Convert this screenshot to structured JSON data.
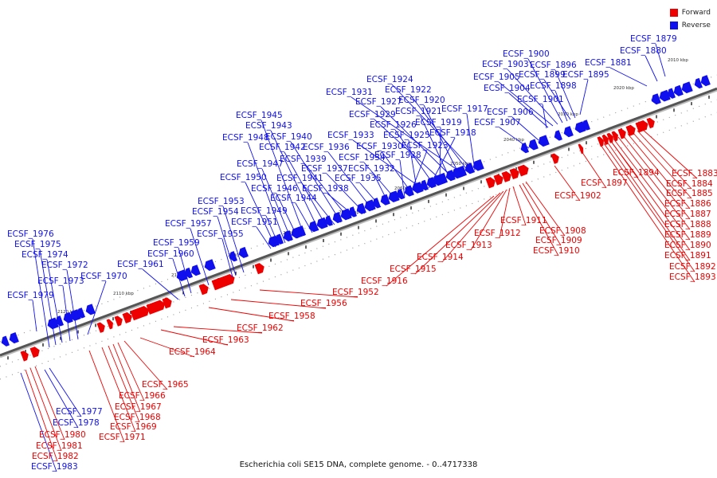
{
  "colors": {
    "forward": "#ee0000",
    "reverse": "#1010ee",
    "axis": "#555555"
  },
  "legend": [
    {
      "label": "Forward",
      "color": "#ee0000"
    },
    {
      "label": "Reverse",
      "color": "#1010ee"
    }
  ],
  "caption": "Escherichia coli SE15 DNA, complete genome. - 0..4717338",
  "kbp_ticks": [
    "2010 kbp",
    "2020 kbp",
    "2030 kbp",
    "2040 kbp",
    "2050 kbp",
    "2060 kbp",
    "2070 kbp",
    "2080 kbp",
    "2090 kbp",
    "2100 kbp",
    "2110 kbp",
    "2120 kbp"
  ],
  "genes": [
    {
      "name": "ECSF_1879",
      "strand": "reverse"
    },
    {
      "name": "ECSF_1880",
      "strand": "reverse"
    },
    {
      "name": "ECSF_1881",
      "strand": "reverse"
    },
    {
      "name": "ECSF_1895",
      "strand": "reverse"
    },
    {
      "name": "ECSF_1898",
      "strand": "reverse"
    },
    {
      "name": "ECSF_1896",
      "strand": "reverse"
    },
    {
      "name": "ECSF_1899",
      "strand": "reverse"
    },
    {
      "name": "ECSF_1900",
      "strand": "reverse"
    },
    {
      "name": "ECSF_1903",
      "strand": "reverse"
    },
    {
      "name": "ECSF_1905",
      "strand": "reverse"
    },
    {
      "name": "ECSF_1904",
      "strand": "reverse"
    },
    {
      "name": "ECSF_1901",
      "strand": "reverse"
    },
    {
      "name": "ECSF_1906",
      "strand": "reverse"
    },
    {
      "name": "ECSF_1907",
      "strand": "reverse"
    },
    {
      "name": "ECSF_1924",
      "strand": "reverse"
    },
    {
      "name": "ECSF_1922",
      "strand": "reverse"
    },
    {
      "name": "ECSF_1931",
      "strand": "reverse"
    },
    {
      "name": "ECSF_1920",
      "strand": "reverse"
    },
    {
      "name": "ECSF_1927",
      "strand": "reverse"
    },
    {
      "name": "ECSF_1917",
      "strand": "reverse"
    },
    {
      "name": "ECSF_1921",
      "strand": "reverse"
    },
    {
      "name": "ECSF_1929",
      "strand": "reverse"
    },
    {
      "name": "ECSF_1919",
      "strand": "reverse"
    },
    {
      "name": "ECSF_1926",
      "strand": "reverse"
    },
    {
      "name": "ECSF_1918",
      "strand": "reverse"
    },
    {
      "name": "ECSF_1933",
      "strand": "reverse"
    },
    {
      "name": "ECSF_1925",
      "strand": "reverse"
    },
    {
      "name": "ECSF_1930",
      "strand": "reverse"
    },
    {
      "name": "ECSF_1923",
      "strand": "reverse"
    },
    {
      "name": "ECSF_1928",
      "strand": "reverse"
    },
    {
      "name": "ECSF_1934",
      "strand": "reverse"
    },
    {
      "name": "ECSF_1932",
      "strand": "reverse"
    },
    {
      "name": "ECSF_1935",
      "strand": "reverse"
    },
    {
      "name": "ECSF_1936",
      "strand": "reverse"
    },
    {
      "name": "ECSF_1937",
      "strand": "reverse"
    },
    {
      "name": "ECSF_1938",
      "strand": "reverse"
    },
    {
      "name": "ECSF_1939",
      "strand": "reverse"
    },
    {
      "name": "ECSF_1940",
      "strand": "reverse"
    },
    {
      "name": "ECSF_1941",
      "strand": "reverse"
    },
    {
      "name": "ECSF_1942",
      "strand": "reverse"
    },
    {
      "name": "ECSF_1943",
      "strand": "reverse"
    },
    {
      "name": "ECSF_1944",
      "strand": "reverse"
    },
    {
      "name": "ECSF_1945",
      "strand": "reverse"
    },
    {
      "name": "ECSF_1946",
      "strand": "reverse"
    },
    {
      "name": "ECSF_1947",
      "strand": "reverse"
    },
    {
      "name": "ECSF_1948",
      "strand": "reverse"
    },
    {
      "name": "ECSF_1949",
      "strand": "reverse"
    },
    {
      "name": "ECSF_1950",
      "strand": "reverse"
    },
    {
      "name": "ECSF_1951",
      "strand": "reverse"
    },
    {
      "name": "ECSF_1953",
      "strand": "reverse"
    },
    {
      "name": "ECSF_1954",
      "strand": "reverse"
    },
    {
      "name": "ECSF_1955",
      "strand": "reverse"
    },
    {
      "name": "ECSF_1957",
      "strand": "reverse"
    },
    {
      "name": "ECSF_1959",
      "strand": "reverse"
    },
    {
      "name": "ECSF_1960",
      "strand": "reverse"
    },
    {
      "name": "ECSF_1961",
      "strand": "reverse"
    },
    {
      "name": "ECSF_1970",
      "strand": "reverse"
    },
    {
      "name": "ECSF_1972",
      "strand": "reverse"
    },
    {
      "name": "ECSF_1973",
      "strand": "reverse"
    },
    {
      "name": "ECSF_1974",
      "strand": "reverse"
    },
    {
      "name": "ECSF_1975",
      "strand": "reverse"
    },
    {
      "name": "ECSF_1976",
      "strand": "reverse"
    },
    {
      "name": "ECSF_1979",
      "strand": "reverse"
    },
    {
      "name": "ECSF_1977",
      "strand": "reverse"
    },
    {
      "name": "ECSF_1978",
      "strand": "reverse"
    },
    {
      "name": "ECSF_1983",
      "strand": "reverse"
    },
    {
      "name": "ECSF_1883",
      "strand": "forward"
    },
    {
      "name": "ECSF_1884",
      "strand": "forward"
    },
    {
      "name": "ECSF_1885",
      "strand": "forward"
    },
    {
      "name": "ECSF_1886",
      "strand": "forward"
    },
    {
      "name": "ECSF_1887",
      "strand": "forward"
    },
    {
      "name": "ECSF_1888",
      "strand": "forward"
    },
    {
      "name": "ECSF_1889",
      "strand": "forward"
    },
    {
      "name": "ECSF_1890",
      "strand": "forward"
    },
    {
      "name": "ECSF_1891",
      "strand": "forward"
    },
    {
      "name": "ECSF_1892",
      "strand": "forward"
    },
    {
      "name": "ECSF_1893",
      "strand": "forward"
    },
    {
      "name": "ECSF_1894",
      "strand": "forward"
    },
    {
      "name": "ECSF_1897",
      "strand": "forward"
    },
    {
      "name": "ECSF_1902",
      "strand": "forward"
    },
    {
      "name": "ECSF_1908",
      "strand": "forward"
    },
    {
      "name": "ECSF_1909",
      "strand": "forward"
    },
    {
      "name": "ECSF_1910",
      "strand": "forward"
    },
    {
      "name": "ECSF_1911",
      "strand": "forward"
    },
    {
      "name": "ECSF_1912",
      "strand": "forward"
    },
    {
      "name": "ECSF_1913",
      "strand": "forward"
    },
    {
      "name": "ECSF_1914",
      "strand": "forward"
    },
    {
      "name": "ECSF_1915",
      "strand": "forward"
    },
    {
      "name": "ECSF_1916",
      "strand": "forward"
    },
    {
      "name": "ECSF_1952",
      "strand": "forward"
    },
    {
      "name": "ECSF_1956",
      "strand": "forward"
    },
    {
      "name": "ECSF_1958",
      "strand": "forward"
    },
    {
      "name": "ECSF_1962",
      "strand": "forward"
    },
    {
      "name": "ECSF_1963",
      "strand": "forward"
    },
    {
      "name": "ECSF_1964",
      "strand": "forward"
    },
    {
      "name": "ECSF_1965",
      "strand": "forward"
    },
    {
      "name": "ECSF_1966",
      "strand": "forward"
    },
    {
      "name": "ECSF_1967",
      "strand": "forward"
    },
    {
      "name": "ECSF_1968",
      "strand": "forward"
    },
    {
      "name": "ECSF_1969",
      "strand": "forward"
    },
    {
      "name": "ECSF_1971",
      "strand": "forward"
    },
    {
      "name": "ECSF_1980",
      "strand": "forward"
    },
    {
      "name": "ECSF_1981",
      "strand": "forward"
    },
    {
      "name": "ECSF_1982",
      "strand": "forward"
    }
  ]
}
